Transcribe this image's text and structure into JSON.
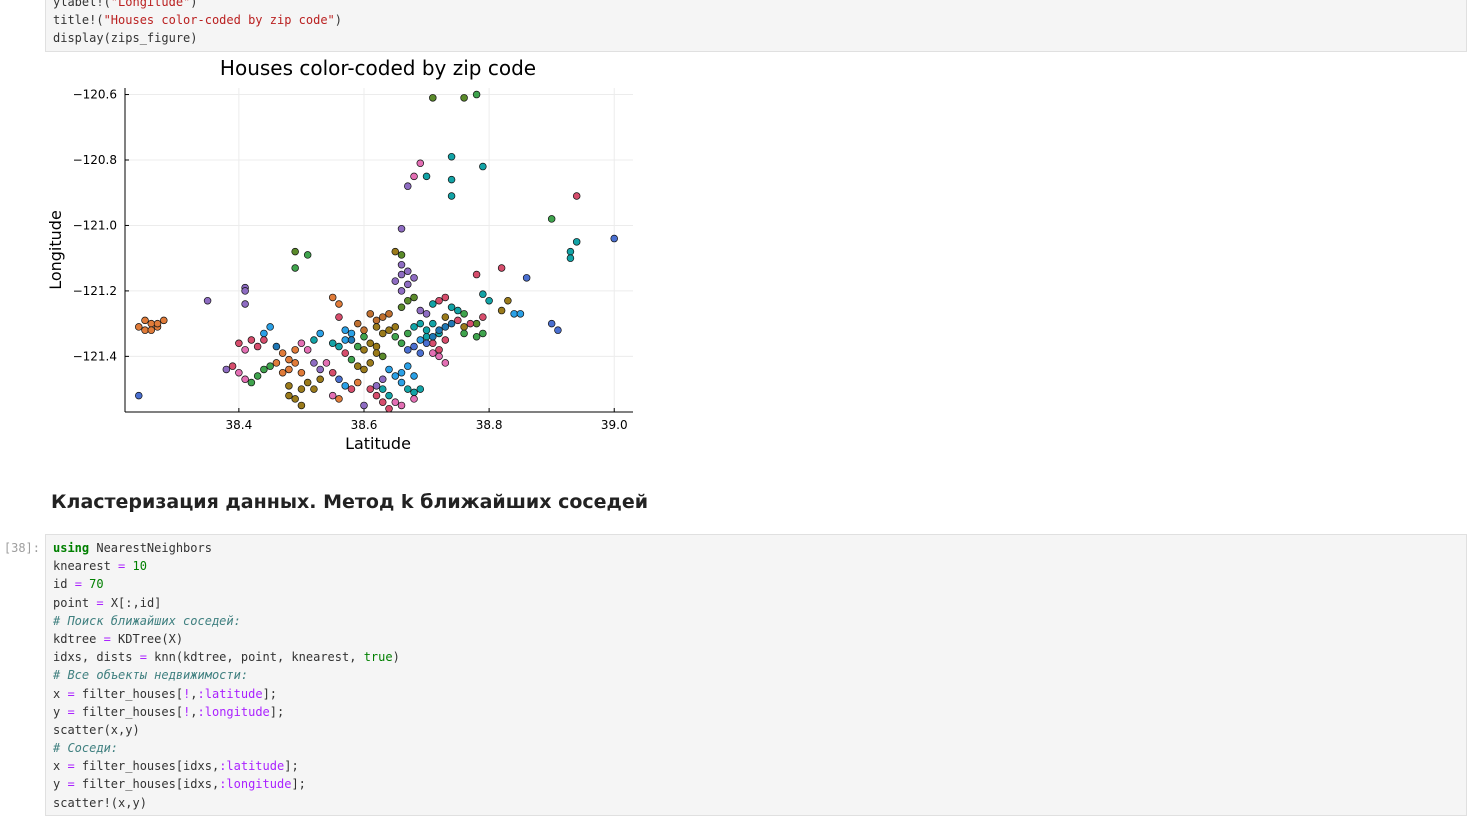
{
  "cells": {
    "top": {
      "lines": [
        {
          "parts": [
            {
              "t": "ylabel!(",
              "c": ""
            },
            {
              "t": "\"Longitude\"",
              "c": "str"
            },
            {
              "t": ")",
              "c": ""
            }
          ]
        },
        {
          "parts": [
            {
              "t": "title!(",
              "c": ""
            },
            {
              "t": "\"Houses color-coded by zip code\"",
              "c": "str"
            },
            {
              "t": ")",
              "c": ""
            }
          ]
        },
        {
          "parts": [
            {
              "t": "display(zips_figure)",
              "c": ""
            }
          ]
        }
      ]
    },
    "c38": {
      "prompt": "[38]:",
      "lines": [
        {
          "parts": [
            {
              "t": "using",
              "c": "kw"
            },
            {
              "t": " NearestNeighbors",
              "c": ""
            }
          ]
        },
        {
          "parts": [
            {
              "t": "knearest ",
              "c": ""
            },
            {
              "t": "=",
              "c": "op"
            },
            {
              "t": " ",
              "c": ""
            },
            {
              "t": "10",
              "c": "num"
            }
          ]
        },
        {
          "parts": [
            {
              "t": "id ",
              "c": ""
            },
            {
              "t": "=",
              "c": "op"
            },
            {
              "t": " ",
              "c": ""
            },
            {
              "t": "70",
              "c": "num"
            }
          ]
        },
        {
          "parts": [
            {
              "t": "point ",
              "c": ""
            },
            {
              "t": "=",
              "c": "op"
            },
            {
              "t": " X[:,id]",
              "c": ""
            }
          ]
        },
        {
          "parts": [
            {
              "t": "# Поиск ближайших соседей:",
              "c": "cmt"
            }
          ]
        },
        {
          "parts": [
            {
              "t": "kdtree ",
              "c": ""
            },
            {
              "t": "=",
              "c": "op"
            },
            {
              "t": " KDTree(X)",
              "c": ""
            }
          ]
        },
        {
          "parts": [
            {
              "t": "idxs, dists ",
              "c": ""
            },
            {
              "t": "=",
              "c": "op"
            },
            {
              "t": " knn(kdtree, point, knearest, ",
              "c": ""
            },
            {
              "t": "true",
              "c": "num"
            },
            {
              "t": ")",
              "c": ""
            }
          ]
        },
        {
          "parts": [
            {
              "t": "# Все объекты недвижимости:",
              "c": "cmt"
            }
          ]
        },
        {
          "parts": [
            {
              "t": "x ",
              "c": ""
            },
            {
              "t": "=",
              "c": "op"
            },
            {
              "t": " filter_houses[",
              "c": ""
            },
            {
              "t": "!",
              "c": "op"
            },
            {
              "t": ",",
              "c": ""
            },
            {
              "t": ":latitude",
              "c": "sym"
            },
            {
              "t": "];",
              "c": ""
            }
          ]
        },
        {
          "parts": [
            {
              "t": "y ",
              "c": ""
            },
            {
              "t": "=",
              "c": "op"
            },
            {
              "t": " filter_houses[",
              "c": ""
            },
            {
              "t": "!",
              "c": "op"
            },
            {
              "t": ",",
              "c": ""
            },
            {
              "t": ":longitude",
              "c": "sym"
            },
            {
              "t": "];",
              "c": ""
            }
          ]
        },
        {
          "parts": [
            {
              "t": "scatter(x,y)",
              "c": ""
            }
          ]
        },
        {
          "parts": [
            {
              "t": "# Соседи:",
              "c": "cmt"
            }
          ]
        },
        {
          "parts": [
            {
              "t": "x ",
              "c": ""
            },
            {
              "t": "=",
              "c": "op"
            },
            {
              "t": " filter_houses[idxs,",
              "c": ""
            },
            {
              "t": ":latitude",
              "c": "sym"
            },
            {
              "t": "];",
              "c": ""
            }
          ]
        },
        {
          "parts": [
            {
              "t": "y ",
              "c": ""
            },
            {
              "t": "=",
              "c": "op"
            },
            {
              "t": " filter_houses[idxs,",
              "c": ""
            },
            {
              "t": ":longitude",
              "c": "sym"
            },
            {
              "t": "];",
              "c": ""
            }
          ]
        },
        {
          "parts": [
            {
              "t": "scatter!(x,y)",
              "c": ""
            }
          ]
        }
      ]
    }
  },
  "heading": "Кластеризация данных. Метод k ближайших соседей",
  "chart_data": {
    "type": "scatter",
    "title": "Houses color-coded by zip code",
    "xlabel": "Latitude",
    "ylabel": "Longitude",
    "xlim": [
      38.218,
      39.03
    ],
    "ylim": [
      -121.57,
      -120.58
    ],
    "xticks": [
      38.4,
      38.6,
      38.8,
      39.0
    ],
    "yticks": [
      -121.4,
      -121.2,
      -121.0,
      -120.8,
      -120.6
    ],
    "grid": true,
    "legend": "none",
    "colors": [
      "#1f77b4",
      "#e07b39",
      "#3fa34d",
      "#d64d6c",
      "#8e6cc2",
      "#9a7a1a",
      "#e36fb4",
      "#12a3a6",
      "#5a8a2a",
      "#4a6fd0",
      "#2aa0e6",
      "#c07030"
    ],
    "points": [
      [
        38.24,
        -121.31,
        1
      ],
      [
        38.25,
        -121.32,
        1
      ],
      [
        38.26,
        -121.3,
        1
      ],
      [
        38.27,
        -121.31,
        1
      ],
      [
        38.28,
        -121.29,
        1
      ],
      [
        38.26,
        -121.32,
        1
      ],
      [
        38.25,
        -121.29,
        1
      ],
      [
        38.27,
        -121.3,
        1
      ],
      [
        38.24,
        -121.52,
        9
      ],
      [
        38.35,
        -121.23,
        4
      ],
      [
        38.41,
        -121.19,
        4
      ],
      [
        38.41,
        -121.24,
        4
      ],
      [
        38.41,
        -121.2,
        4
      ],
      [
        38.49,
        -121.08,
        8
      ],
      [
        38.51,
        -121.09,
        2
      ],
      [
        38.49,
        -121.13,
        2
      ],
      [
        38.71,
        -120.61,
        8
      ],
      [
        38.76,
        -120.61,
        8
      ],
      [
        38.78,
        -120.6,
        2
      ],
      [
        38.69,
        -120.81,
        6
      ],
      [
        38.68,
        -120.85,
        6
      ],
      [
        38.67,
        -120.88,
        4
      ],
      [
        38.74,
        -120.79,
        7
      ],
      [
        38.79,
        -120.82,
        7
      ],
      [
        38.74,
        -120.86,
        7
      ],
      [
        38.74,
        -120.91,
        7
      ],
      [
        38.7,
        -120.85,
        7
      ],
      [
        38.66,
        -121.01,
        4
      ],
      [
        38.65,
        -121.08,
        5
      ],
      [
        38.66,
        -121.09,
        8
      ],
      [
        38.66,
        -121.12,
        4
      ],
      [
        38.67,
        -121.14,
        4
      ],
      [
        38.9,
        -120.98,
        2
      ],
      [
        38.94,
        -120.91,
        3
      ],
      [
        39.0,
        -121.04,
        9
      ],
      [
        38.94,
        -121.05,
        7
      ],
      [
        38.93,
        -121.08,
        7
      ],
      [
        38.93,
        -121.1,
        7
      ],
      [
        38.78,
        -121.15,
        3
      ],
      [
        38.82,
        -121.13,
        3
      ],
      [
        38.86,
        -121.16,
        9
      ],
      [
        38.9,
        -121.3,
        9
      ],
      [
        38.91,
        -121.32,
        9
      ],
      [
        38.84,
        -121.27,
        10
      ],
      [
        38.85,
        -121.27,
        10
      ],
      [
        38.83,
        -121.23,
        5
      ],
      [
        38.8,
        -121.23,
        7
      ],
      [
        38.79,
        -121.21,
        7
      ],
      [
        38.76,
        -121.27,
        2
      ],
      [
        38.78,
        -121.3,
        8
      ],
      [
        38.79,
        -121.28,
        3
      ],
      [
        38.79,
        -121.33,
        2
      ],
      [
        38.78,
        -121.34,
        2
      ],
      [
        38.82,
        -121.26,
        5
      ],
      [
        38.55,
        -121.22,
        1
      ],
      [
        38.56,
        -121.24,
        1
      ],
      [
        38.56,
        -121.28,
        3
      ],
      [
        38.4,
        -121.36,
        3
      ],
      [
        38.41,
        -121.38,
        6
      ],
      [
        38.42,
        -121.35,
        3
      ],
      [
        38.43,
        -121.37,
        3
      ],
      [
        38.44,
        -121.33,
        10
      ],
      [
        38.45,
        -121.31,
        10
      ],
      [
        38.44,
        -121.35,
        3
      ],
      [
        38.46,
        -121.37,
        0
      ],
      [
        38.39,
        -121.43,
        3
      ],
      [
        38.4,
        -121.45,
        6
      ],
      [
        38.41,
        -121.47,
        6
      ],
      [
        38.42,
        -121.48,
        2
      ],
      [
        38.43,
        -121.46,
        2
      ],
      [
        38.44,
        -121.44,
        2
      ],
      [
        38.45,
        -121.43,
        2
      ],
      [
        38.38,
        -121.44,
        4
      ],
      [
        38.47,
        -121.39,
        1
      ],
      [
        38.48,
        -121.41,
        1
      ],
      [
        38.49,
        -121.42,
        1
      ],
      [
        38.48,
        -121.44,
        1
      ],
      [
        38.5,
        -121.45,
        1
      ],
      [
        38.46,
        -121.42,
        1
      ],
      [
        38.47,
        -121.45,
        1
      ],
      [
        38.49,
        -121.38,
        1
      ],
      [
        38.48,
        -121.49,
        5
      ],
      [
        38.5,
        -121.5,
        5
      ],
      [
        38.49,
        -121.53,
        5
      ],
      [
        38.5,
        -121.55,
        5
      ],
      [
        38.48,
        -121.52,
        5
      ],
      [
        38.51,
        -121.48,
        5
      ],
      [
        38.53,
        -121.47,
        5
      ],
      [
        38.52,
        -121.5,
        5
      ],
      [
        38.52,
        -121.42,
        4
      ],
      [
        38.53,
        -121.44,
        4
      ],
      [
        38.54,
        -121.42,
        6
      ],
      [
        38.55,
        -121.45,
        3
      ],
      [
        38.56,
        -121.47,
        9
      ],
      [
        38.57,
        -121.49,
        10
      ],
      [
        38.58,
        -121.5,
        3
      ],
      [
        38.59,
        -121.48,
        1
      ],
      [
        38.55,
        -121.36,
        7
      ],
      [
        38.56,
        -121.37,
        7
      ],
      [
        38.57,
        -121.35,
        10
      ],
      [
        38.58,
        -121.33,
        10
      ],
      [
        38.59,
        -121.3,
        11
      ],
      [
        38.6,
        -121.32,
        11
      ],
      [
        38.57,
        -121.32,
        10
      ],
      [
        38.58,
        -121.35,
        0
      ],
      [
        38.6,
        -121.38,
        5
      ],
      [
        38.61,
        -121.36,
        5
      ],
      [
        38.62,
        -121.37,
        5
      ],
      [
        38.62,
        -121.39,
        5
      ],
      [
        38.63,
        -121.4,
        8
      ],
      [
        38.61,
        -121.42,
        5
      ],
      [
        38.6,
        -121.44,
        5
      ],
      [
        38.59,
        -121.43,
        5
      ],
      [
        38.61,
        -121.27,
        11
      ],
      [
        38.62,
        -121.29,
        11
      ],
      [
        38.63,
        -121.28,
        11
      ],
      [
        38.64,
        -121.27,
        11
      ],
      [
        38.62,
        -121.31,
        5
      ],
      [
        38.63,
        -121.33,
        5
      ],
      [
        38.64,
        -121.32,
        5
      ],
      [
        38.65,
        -121.31,
        5
      ],
      [
        38.65,
        -121.34,
        2
      ],
      [
        38.66,
        -121.36,
        2
      ],
      [
        38.67,
        -121.33,
        2
      ],
      [
        38.68,
        -121.31,
        7
      ],
      [
        38.69,
        -121.3,
        7
      ],
      [
        38.7,
        -121.32,
        7
      ],
      [
        38.71,
        -121.3,
        7
      ],
      [
        38.72,
        -121.33,
        7
      ],
      [
        38.66,
        -121.25,
        8
      ],
      [
        38.67,
        -121.23,
        8
      ],
      [
        38.68,
        -121.22,
        8
      ],
      [
        38.66,
        -121.2,
        4
      ],
      [
        38.67,
        -121.18,
        4
      ],
      [
        38.68,
        -121.16,
        4
      ],
      [
        38.65,
        -121.17,
        4
      ],
      [
        38.66,
        -121.15,
        4
      ],
      [
        38.69,
        -121.26,
        4
      ],
      [
        38.7,
        -121.27,
        4
      ],
      [
        38.71,
        -121.24,
        7
      ],
      [
        38.72,
        -121.23,
        3
      ],
      [
        38.73,
        -121.22,
        3
      ],
      [
        38.74,
        -121.25,
        7
      ],
      [
        38.75,
        -121.26,
        7
      ],
      [
        38.73,
        -121.28,
        5
      ],
      [
        38.71,
        -121.36,
        3
      ],
      [
        38.72,
        -121.38,
        3
      ],
      [
        38.73,
        -121.35,
        3
      ],
      [
        38.72,
        -121.4,
        6
      ],
      [
        38.71,
        -121.39,
        6
      ],
      [
        38.73,
        -121.42,
        6
      ],
      [
        38.7,
        -121.34,
        7
      ],
      [
        38.69,
        -121.35,
        10
      ],
      [
        38.64,
        -121.44,
        10
      ],
      [
        38.65,
        -121.46,
        10
      ],
      [
        38.66,
        -121.45,
        10
      ],
      [
        38.67,
        -121.43,
        10
      ],
      [
        38.68,
        -121.46,
        10
      ],
      [
        38.66,
        -121.48,
        10
      ],
      [
        38.63,
        -121.47,
        4
      ],
      [
        38.62,
        -121.49,
        4
      ],
      [
        38.63,
        -121.5,
        7
      ],
      [
        38.64,
        -121.52,
        7
      ],
      [
        38.65,
        -121.54,
        6
      ],
      [
        38.66,
        -121.55,
        6
      ],
      [
        38.67,
        -121.5,
        7
      ],
      [
        38.68,
        -121.51,
        7
      ],
      [
        38.69,
        -121.5,
        7
      ],
      [
        38.68,
        -121.53,
        6
      ],
      [
        38.61,
        -121.5,
        3
      ],
      [
        38.62,
        -121.52,
        3
      ],
      [
        38.6,
        -121.55,
        4
      ],
      [
        38.63,
        -121.54,
        3
      ],
      [
        38.64,
        -121.56,
        3
      ],
      [
        38.67,
        -121.38,
        9
      ],
      [
        38.68,
        -121.37,
        9
      ],
      [
        38.69,
        -121.39,
        9
      ],
      [
        38.7,
        -121.36,
        9
      ],
      [
        38.71,
        -121.34,
        0
      ],
      [
        38.72,
        -121.32,
        0
      ],
      [
        38.73,
        -121.31,
        0
      ],
      [
        38.74,
        -121.3,
        0
      ],
      [
        38.76,
        -121.31,
        5
      ],
      [
        38.77,
        -121.3,
        3
      ],
      [
        38.75,
        -121.29,
        3
      ],
      [
        38.76,
        -121.33,
        2
      ],
      [
        38.6,
        -121.34,
        2
      ],
      [
        38.59,
        -121.37,
        2
      ],
      [
        38.58,
        -121.41,
        2
      ],
      [
        38.57,
        -121.39,
        3
      ],
      [
        38.53,
        -121.33,
        10
      ],
      [
        38.52,
        -121.35,
        7
      ],
      [
        38.5,
        -121.36,
        6
      ],
      [
        38.51,
        -121.38,
        6
      ],
      [
        38.55,
        -121.52,
        6
      ],
      [
        38.56,
        -121.53,
        1
      ]
    ]
  }
}
